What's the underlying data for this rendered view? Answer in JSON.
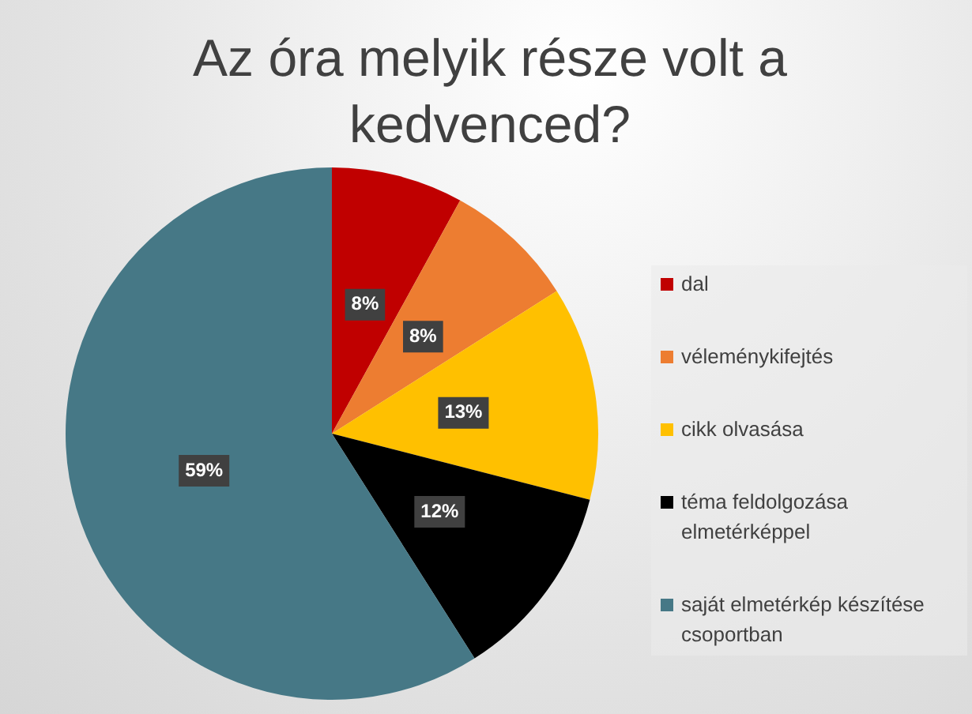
{
  "chart_data": {
    "type": "pie",
    "title": "Az óra melyik része volt a kedvenced?",
    "categories": [
      "dal",
      "véleménykifejtés",
      "cikk olvasása",
      "téma feldolgozása elmetérképpel",
      "saját elmetérkép készítése csoportban"
    ],
    "values": [
      8,
      8,
      13,
      12,
      59
    ],
    "colors": [
      "#c00000",
      "#ed7d31",
      "#ffc000",
      "#000000",
      "#467886"
    ],
    "value_labels": [
      "8%",
      "8%",
      "13%",
      "12%",
      "59%"
    ],
    "legend": "right"
  }
}
